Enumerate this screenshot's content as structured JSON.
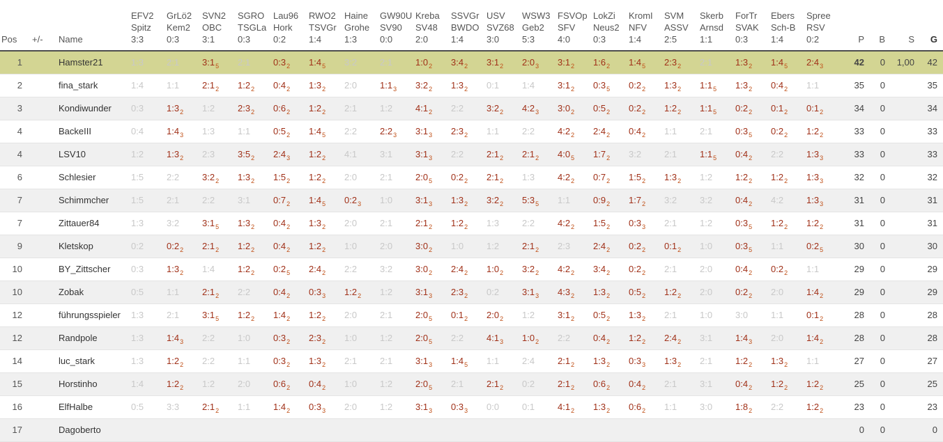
{
  "colors": {
    "highlight_row": "#d3d593",
    "alt_row": "#f0f0f0",
    "score_played": "#a03018",
    "score_subscript": "#c05018",
    "score_missing": "#c8c8c8",
    "leader_points": "#b61f1f",
    "header_rule": "#4d4d4d"
  },
  "left_headers": [
    "Pos",
    "+/-",
    "Name"
  ],
  "right_headers": [
    "P",
    "B",
    "S",
    "G"
  ],
  "columns": [
    {
      "club": "EFV2",
      "opponent": "Spitz",
      "score": "3:3"
    },
    {
      "club": "GrLö2",
      "opponent": "Kem2",
      "score": "0:3"
    },
    {
      "club": "SVN2",
      "opponent": "OBC",
      "score": "3:1"
    },
    {
      "club": "SGRO",
      "opponent": "TSGLa",
      "score": "0:3"
    },
    {
      "club": "Lau96",
      "opponent": "Hork",
      "score": "0:2"
    },
    {
      "club": "RWO2",
      "opponent": "TSVGr",
      "score": "1:4"
    },
    {
      "club": "Haine",
      "opponent": "Grohe",
      "score": "1:3"
    },
    {
      "club": "GW90U",
      "opponent": "SV90",
      "score": "0:0"
    },
    {
      "club": "Kreba",
      "opponent": "SV48",
      "score": "2:0"
    },
    {
      "club": "SSVGr",
      "opponent": "BWDO",
      "score": "1:4"
    },
    {
      "club": "USV",
      "opponent": "SVZ68",
      "score": "3:0"
    },
    {
      "club": "WSW3",
      "opponent": "Geb2",
      "score": "5:3"
    },
    {
      "club": "FSVOp",
      "opponent": "SFV",
      "score": "4:0"
    },
    {
      "club": "LokZi",
      "opponent": "Neus2",
      "score": "0:3"
    },
    {
      "club": "KromI",
      "opponent": "NFV",
      "score": "1:4"
    },
    {
      "club": "SVM",
      "opponent": "ASSV",
      "score": "2:5"
    },
    {
      "club": "Skerb",
      "opponent": "Arnsd",
      "score": "1:1"
    },
    {
      "club": "ForTr",
      "opponent": "SVAK",
      "score": "0:3"
    },
    {
      "club": "Ebers",
      "opponent": "Sch-B",
      "score": "1:4"
    },
    {
      "club": "Spree",
      "opponent": "RSV",
      "score": "0:2"
    }
  ],
  "rows": [
    {
      "pos": "1",
      "change": "",
      "name": "Hamster21",
      "highlight": true,
      "cells": [
        "1:3",
        "2:1",
        "3:1|5",
        "2:1",
        "0:3|2",
        "1:4|5",
        "3:2",
        "2:1",
        "1:0|2",
        "3:4|2",
        "3:1|2",
        "2:0|3",
        "3:1|2",
        "1:6|2",
        "1:4|5",
        "2:3|2",
        "2:1",
        "1:3|2",
        "1:4|5",
        "2:4|3"
      ],
      "p": "42",
      "b": "0",
      "s": "1,00",
      "g": "42"
    },
    {
      "pos": "2",
      "change": "",
      "name": "fina_stark",
      "highlight": false,
      "cells": [
        "1:4",
        "1:1",
        "2:1|2",
        "1:2|2",
        "0:4|2",
        "1:3|2",
        "2:0",
        "1:1|3",
        "3:2|2",
        "1:3|2",
        "0:1",
        "1:4",
        "3:1|2",
        "0:3|5",
        "0:2|2",
        "1:3|2",
        "1:1|5",
        "1:3|2",
        "0:4|2",
        "1:1"
      ],
      "p": "35",
      "b": "0",
      "s": "",
      "g": "35"
    },
    {
      "pos": "3",
      "change": "",
      "name": "Kondiwunder",
      "highlight": false,
      "cells": [
        "0:3",
        "1:3|2",
        "1:2",
        "2:3|2",
        "0:6|2",
        "1:2|2",
        "2:1",
        "1:2",
        "4:1|2",
        "2:2",
        "3:2|2",
        "4:2|3",
        "3:0|2",
        "0:5|2",
        "0:2|2",
        "1:2|2",
        "1:1|5",
        "0:2|2",
        "0:1|2",
        "0:1|2"
      ],
      "p": "34",
      "b": "0",
      "s": "",
      "g": "34"
    },
    {
      "pos": "4",
      "change": "",
      "name": "BackeIII",
      "highlight": false,
      "cells": [
        "0:4",
        "1:4|3",
        "1:3",
        "1:1",
        "0:5|2",
        "1:4|5",
        "2:2",
        "2:2|3",
        "3:1|3",
        "2:3|2",
        "1:1",
        "2:2",
        "4:2|2",
        "2:4|2",
        "0:4|2",
        "1:1",
        "2:1",
        "0:3|5",
        "0:2|2",
        "1:2|2"
      ],
      "p": "33",
      "b": "0",
      "s": "",
      "g": "33"
    },
    {
      "pos": "4",
      "change": "",
      "name": "LSV10",
      "highlight": false,
      "cells": [
        "1:2",
        "1:3|2",
        "2:3",
        "3:5|2",
        "2:4|3",
        "1:2|2",
        "4:1",
        "3:1",
        "3:1|3",
        "2:2",
        "2:1|2",
        "2:1|2",
        "4:0|5",
        "1:7|2",
        "3:2",
        "2:1",
        "1:1|5",
        "0:4|2",
        "2:2",
        "1:3|3"
      ],
      "p": "33",
      "b": "0",
      "s": "",
      "g": "33"
    },
    {
      "pos": "6",
      "change": "",
      "name": "Schlesier",
      "highlight": false,
      "cells": [
        "1:5",
        "2:2",
        "3:2|2",
        "1:3|2",
        "1:5|2",
        "1:2|2",
        "2:0",
        "2:1",
        "2:0|5",
        "0:2|2",
        "2:1|2",
        "1:3",
        "4:2|2",
        "0:7|2",
        "1:5|2",
        "1:3|2",
        "1:2",
        "1:2|2",
        "1:2|2",
        "1:3|3"
      ],
      "p": "32",
      "b": "0",
      "s": "",
      "g": "32"
    },
    {
      "pos": "7",
      "change": "",
      "name": "Schimmcher",
      "highlight": false,
      "cells": [
        "1:5",
        "2:1",
        "2:2",
        "3:1",
        "0:7|2",
        "1:4|5",
        "0:2|3",
        "1:0",
        "3:1|3",
        "1:3|2",
        "3:2|2",
        "5:3|5",
        "1:1",
        "0:9|2",
        "1:7|2",
        "3:2",
        "3:2",
        "0:4|2",
        "4:2",
        "1:3|3"
      ],
      "p": "31",
      "b": "0",
      "s": "",
      "g": "31"
    },
    {
      "pos": "7",
      "change": "",
      "name": "Zittauer84",
      "highlight": false,
      "cells": [
        "1:3",
        "3:2",
        "3:1|5",
        "1:3|2",
        "0:4|2",
        "1:3|2",
        "2:0",
        "2:1",
        "2:1|2",
        "1:2|2",
        "1:3",
        "2:2",
        "4:2|2",
        "1:5|2",
        "0:3|3",
        "2:1",
        "1:2",
        "0:3|5",
        "1:2|2",
        "1:2|2"
      ],
      "p": "31",
      "b": "0",
      "s": "",
      "g": "31"
    },
    {
      "pos": "9",
      "change": "",
      "name": "Kletskop",
      "highlight": false,
      "cells": [
        "0:2",
        "0:2|2",
        "2:1|2",
        "1:2|2",
        "0:4|2",
        "1:2|2",
        "1:0",
        "2:0",
        "3:0|2",
        "1:0",
        "1:2",
        "2:1|2",
        "2:3",
        "2:4|2",
        "0:2|2",
        "0:1|2",
        "1:0",
        "0:3|5",
        "1:1",
        "0:2|5"
      ],
      "p": "30",
      "b": "0",
      "s": "",
      "g": "30"
    },
    {
      "pos": "10",
      "change": "",
      "name": "BY_Zittscher",
      "highlight": false,
      "cells": [
        "0:3",
        "1:3|2",
        "1:4",
        "1:2|2",
        "0:2|5",
        "2:4|2",
        "2:2",
        "3:2",
        "3:0|2",
        "2:4|2",
        "1:0|2",
        "3:2|2",
        "4:2|2",
        "3:4|2",
        "0:2|2",
        "2:1",
        "2:0",
        "0:4|2",
        "0:2|2",
        "1:1"
      ],
      "p": "29",
      "b": "0",
      "s": "",
      "g": "29"
    },
    {
      "pos": "10",
      "change": "",
      "name": "Zobak",
      "highlight": false,
      "cells": [
        "0:5",
        "1:1",
        "2:1|2",
        "2:2",
        "0:4|2",
        "0:3|3",
        "1:2|2",
        "1:2",
        "3:1|3",
        "2:3|2",
        "0:2",
        "3:1|3",
        "4:3|2",
        "1:3|2",
        "0:5|2",
        "1:2|2",
        "2:0",
        "0:2|2",
        "2:0",
        "1:4|2"
      ],
      "p": "29",
      "b": "0",
      "s": "",
      "g": "29"
    },
    {
      "pos": "12",
      "change": "",
      "name": "führungsspieler",
      "highlight": false,
      "cells": [
        "1:3",
        "2:1",
        "3:1|5",
        "1:2|2",
        "1:4|2",
        "1:2|2",
        "2:0",
        "2:1",
        "2:0|5",
        "0:1|2",
        "2:0|2",
        "1:2",
        "3:1|2",
        "0:5|2",
        "1:3|2",
        "2:1",
        "1:0",
        "3:0",
        "1:1",
        "0:1|2"
      ],
      "p": "28",
      "b": "0",
      "s": "",
      "g": "28"
    },
    {
      "pos": "12",
      "change": "",
      "name": "Randpole",
      "highlight": false,
      "cells": [
        "1:3",
        "1:4|3",
        "2:2",
        "1:0",
        "0:3|2",
        "2:3|2",
        "1:0",
        "1:2",
        "2:0|5",
        "2:2",
        "4:1|3",
        "1:0|2",
        "2:2",
        "0:4|2",
        "1:2|2",
        "2:4|2",
        "3:1",
        "1:4|3",
        "2:0",
        "1:4|2"
      ],
      "p": "28",
      "b": "0",
      "s": "",
      "g": "28"
    },
    {
      "pos": "14",
      "change": "",
      "name": "luc_stark",
      "highlight": false,
      "cells": [
        "1:3",
        "1:2|2",
        "2:2",
        "1:1",
        "0:3|2",
        "1:3|2",
        "2:1",
        "2:1",
        "3:1|3",
        "1:4|5",
        "1:1",
        "2:4",
        "2:1|2",
        "1:3|2",
        "0:3|3",
        "1:3|2",
        "2:1",
        "1:2|2",
        "1:3|2",
        "1:1"
      ],
      "p": "27",
      "b": "0",
      "s": "",
      "g": "27"
    },
    {
      "pos": "15",
      "change": "",
      "name": "Horstinho",
      "highlight": false,
      "cells": [
        "1:4",
        "1:2|2",
        "1:2",
        "2:0",
        "0:6|2",
        "0:4|2",
        "1:0",
        "1:2",
        "2:0|5",
        "2:1",
        "2:1|2",
        "0:2",
        "2:1|2",
        "0:6|2",
        "0:4|2",
        "2:1",
        "3:1",
        "0:4|2",
        "1:2|2",
        "1:2|2"
      ],
      "p": "25",
      "b": "0",
      "s": "",
      "g": "25"
    },
    {
      "pos": "16",
      "change": "",
      "name": "ElfHalbe",
      "highlight": false,
      "cells": [
        "0:5",
        "3:3",
        "2:1|2",
        "1:1",
        "1:4|2",
        "0:3|3",
        "2:0",
        "1:2",
        "3:1|3",
        "0:3|3",
        "0:0",
        "0:1",
        "4:1|2",
        "1:3|2",
        "0:6|2",
        "1:1",
        "3:0",
        "1:8|2",
        "2:2",
        "1:2|2"
      ],
      "p": "23",
      "b": "0",
      "s": "",
      "g": "23"
    },
    {
      "pos": "17",
      "change": "",
      "name": "Dagoberto",
      "highlight": false,
      "cells": [
        "",
        "",
        "",
        "",
        "",
        "",
        "",
        "",
        "",
        "",
        "",
        "",
        "",
        "",
        "",
        "",
        "",
        "",
        "",
        ""
      ],
      "p": "0",
      "b": "0",
      "s": "",
      "g": "0"
    }
  ]
}
